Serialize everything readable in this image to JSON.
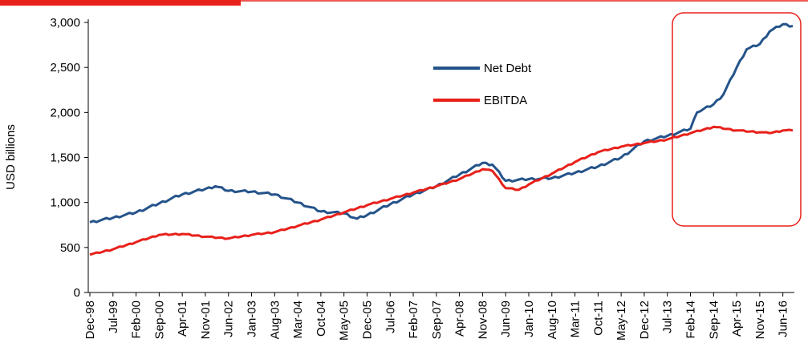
{
  "colors": {
    "accent": "#e8201a",
    "net_debt": "#24538a",
    "ebitda": "#e8201a",
    "highlight": "#e8201a"
  },
  "chart_data": {
    "type": "line",
    "title": "",
    "xlabel": "",
    "ylabel": "USD billions",
    "ylim": [
      0,
      3000
    ],
    "yticks": [
      "0",
      "500",
      "1,000",
      "1,500",
      "2,000",
      "2,500",
      "3,000"
    ],
    "ytick_values": [
      0,
      500,
      1000,
      1500,
      2000,
      2500,
      3000
    ],
    "x_start": "Dec-98",
    "x_end": "Sep-16",
    "x_ticks": [
      "Dec-98",
      "Jul-99",
      "Feb-00",
      "Sep-00",
      "Apr-01",
      "Nov-01",
      "Jun-02",
      "Jan-03",
      "Aug-03",
      "Mar-04",
      "Oct-04",
      "May-05",
      "Dec-05",
      "Jul-06",
      "Feb-07",
      "Sep-07",
      "Apr-08",
      "Nov-08",
      "Jun-09",
      "Jan-10",
      "Aug-10",
      "Mar-11",
      "Oct-11",
      "May-12",
      "Dec-12",
      "Jul-13",
      "Feb-14",
      "Sep-14",
      "Apr-15",
      "Nov-15",
      "Jun-16"
    ],
    "grid": false,
    "legend": "top-center",
    "series": [
      {
        "name": "Net Debt",
        "color": "#24538a",
        "points": [
          [
            "Dec-98",
            780
          ],
          [
            "Jul-99",
            830
          ],
          [
            "Feb-00",
            890
          ],
          [
            "Sep-00",
            990
          ],
          [
            "Apr-01",
            1090
          ],
          [
            "Nov-01",
            1150
          ],
          [
            "Feb-02",
            1180
          ],
          [
            "Jun-02",
            1130
          ],
          [
            "Jan-03",
            1120
          ],
          [
            "Aug-03",
            1090
          ],
          [
            "Mar-04",
            1000
          ],
          [
            "Oct-04",
            900
          ],
          [
            "May-05",
            880
          ],
          [
            "Sep-05",
            820
          ],
          [
            "Dec-05",
            860
          ],
          [
            "Jul-06",
            980
          ],
          [
            "Feb-07",
            1090
          ],
          [
            "Sep-07",
            1180
          ],
          [
            "Apr-08",
            1310
          ],
          [
            "Nov-08",
            1440
          ],
          [
            "Feb-09",
            1420
          ],
          [
            "Jun-09",
            1240
          ],
          [
            "Jan-10",
            1260
          ],
          [
            "Aug-10",
            1270
          ],
          [
            "Mar-11",
            1330
          ],
          [
            "Oct-11",
            1400
          ],
          [
            "May-12",
            1500
          ],
          [
            "Dec-12",
            1680
          ],
          [
            "Jul-13",
            1740
          ],
          [
            "Feb-14",
            1820
          ],
          [
            "Apr-14",
            2000
          ],
          [
            "Sep-14",
            2090
          ],
          [
            "Dec-14",
            2200
          ],
          [
            "Apr-15",
            2500
          ],
          [
            "Jul-15",
            2700
          ],
          [
            "Nov-15",
            2760
          ],
          [
            "Feb-16",
            2900
          ],
          [
            "Jun-16",
            2980
          ],
          [
            "Sep-16",
            2960
          ]
        ]
      },
      {
        "name": "EBITDA",
        "color": "#e8201a",
        "points": [
          [
            "Dec-98",
            420
          ],
          [
            "Jul-99",
            480
          ],
          [
            "Feb-00",
            560
          ],
          [
            "Sep-00",
            640
          ],
          [
            "Apr-01",
            650
          ],
          [
            "Nov-01",
            620
          ],
          [
            "Jun-02",
            600
          ],
          [
            "Jan-03",
            640
          ],
          [
            "Aug-03",
            670
          ],
          [
            "Mar-04",
            740
          ],
          [
            "Oct-04",
            810
          ],
          [
            "May-05",
            890
          ],
          [
            "Dec-05",
            970
          ],
          [
            "Jul-06",
            1040
          ],
          [
            "Feb-07",
            1110
          ],
          [
            "Sep-07",
            1180
          ],
          [
            "Apr-08",
            1260
          ],
          [
            "Nov-08",
            1370
          ],
          [
            "Feb-09",
            1350
          ],
          [
            "Jun-09",
            1160
          ],
          [
            "Oct-09",
            1140
          ],
          [
            "Jan-10",
            1200
          ],
          [
            "Aug-10",
            1320
          ],
          [
            "Mar-11",
            1450
          ],
          [
            "Oct-11",
            1560
          ],
          [
            "May-12",
            1620
          ],
          [
            "Dec-12",
            1660
          ],
          [
            "Jul-13",
            1700
          ],
          [
            "Feb-14",
            1770
          ],
          [
            "Sep-14",
            1840
          ],
          [
            "Apr-15",
            1800
          ],
          [
            "Nov-15",
            1780
          ],
          [
            "Feb-16",
            1770
          ],
          [
            "Jun-16",
            1800
          ],
          [
            "Sep-16",
            1800
          ]
        ]
      }
    ],
    "annotations": [
      {
        "type": "highlight-box",
        "from": "Feb-14",
        "to": "Sep-16",
        "description": "rounded red box around recent period"
      }
    ]
  }
}
